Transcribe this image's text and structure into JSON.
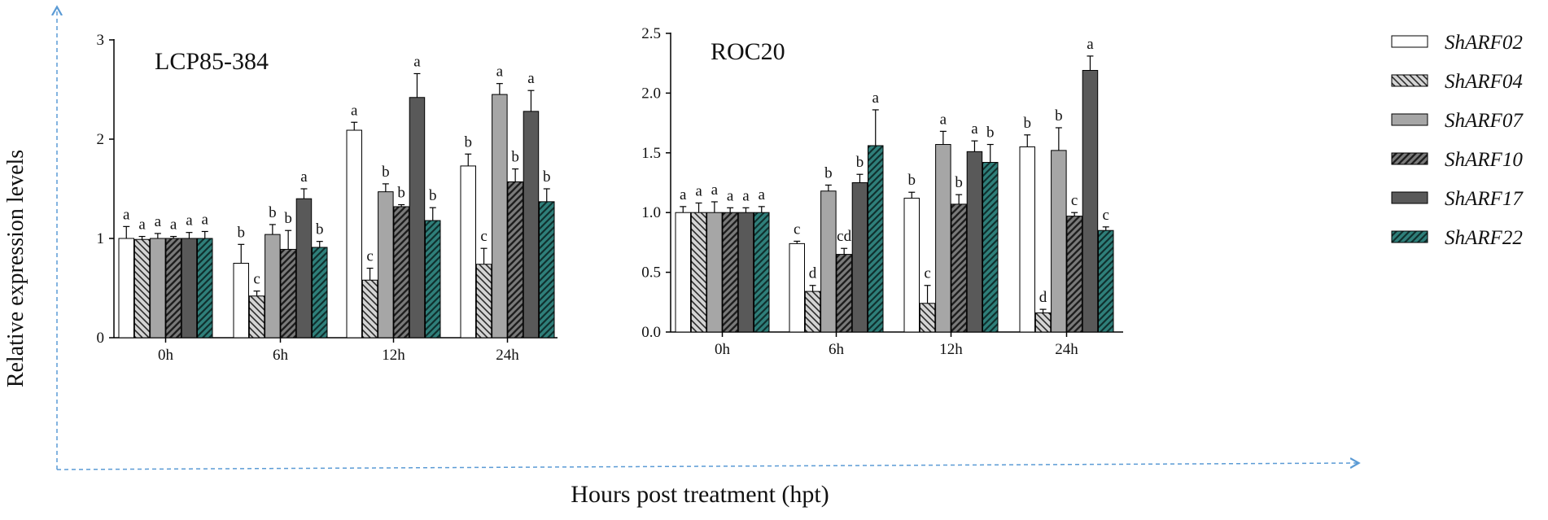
{
  "figure": {
    "shared_ylabel": "Relative expression levels",
    "shared_xlabel": "Hours post treatment (hpt)",
    "axis_arrow_color": "#5b9bd5"
  },
  "legend": [
    {
      "name": "ShARF02",
      "fill": "#ffffff",
      "hatch": "none"
    },
    {
      "name": "ShARF04",
      "fill": "#d4d4d4",
      "hatch": "back"
    },
    {
      "name": "ShARF07",
      "fill": "#a6a6a6",
      "hatch": "none"
    },
    {
      "name": "ShARF10",
      "fill": "#7a7a7a",
      "hatch": "fwd"
    },
    {
      "name": "ShARF17",
      "fill": "#595959",
      "hatch": "none"
    },
    {
      "name": "ShARF22",
      "fill": "#2f7f7a",
      "hatch": "fwd"
    }
  ],
  "chart_data": [
    {
      "type": "bar",
      "title": "LCP85-384",
      "xlabel": "",
      "ylabel": "",
      "categories": [
        "0h",
        "6h",
        "12h",
        "24h"
      ],
      "ylim": [
        0,
        3
      ],
      "yticks": [
        "0",
        "1",
        "2",
        "3"
      ],
      "ytick_values": [
        0,
        1,
        2,
        3
      ],
      "series": [
        {
          "name": "ShARF02",
          "values": [
            1.0,
            0.75,
            2.09,
            1.73
          ],
          "errors": [
            0.12,
            0.19,
            0.08,
            0.12
          ],
          "letters": [
            "a",
            "b",
            "a",
            "b"
          ]
        },
        {
          "name": "ShARF04",
          "values": [
            0.99,
            0.42,
            0.58,
            0.74
          ],
          "errors": [
            0.03,
            0.05,
            0.12,
            0.16
          ],
          "letters": [
            "a",
            "c",
            "c",
            "c"
          ]
        },
        {
          "name": "ShARF07",
          "values": [
            1.0,
            1.04,
            1.47,
            2.45
          ],
          "errors": [
            0.05,
            0.1,
            0.08,
            0.11
          ],
          "letters": [
            "a",
            "b",
            "b",
            "a"
          ]
        },
        {
          "name": "ShARF10",
          "values": [
            1.0,
            0.89,
            1.32,
            1.57
          ],
          "errors": [
            0.02,
            0.19,
            0.02,
            0.13
          ],
          "letters": [
            "a",
            "b",
            "b",
            "b"
          ]
        },
        {
          "name": "ShARF17",
          "values": [
            1.0,
            1.4,
            2.42,
            2.28
          ],
          "errors": [
            0.06,
            0.1,
            0.24,
            0.21
          ],
          "letters": [
            "a",
            "a",
            "a",
            "a"
          ]
        },
        {
          "name": "ShARF22",
          "values": [
            1.0,
            0.91,
            1.18,
            1.37
          ],
          "errors": [
            0.07,
            0.06,
            0.13,
            0.13
          ],
          "letters": [
            "a",
            "b",
            "b",
            "b"
          ]
        }
      ]
    },
    {
      "type": "bar",
      "title": "ROC20",
      "xlabel": "",
      "ylabel": "",
      "categories": [
        "0h",
        "6h",
        "12h",
        "24h"
      ],
      "ylim": [
        0,
        2.5
      ],
      "yticks": [
        "0.0",
        "0.5",
        "1.0",
        "1.5",
        "2.0",
        "2.5"
      ],
      "ytick_values": [
        0,
        0.5,
        1,
        1.5,
        2,
        2.5
      ],
      "series": [
        {
          "name": "ShARF02",
          "values": [
            1.0,
            0.74,
            1.12,
            1.55
          ],
          "errors": [
            0.05,
            0.02,
            0.05,
            0.1
          ],
          "letters": [
            "a",
            "c",
            "b",
            "b"
          ]
        },
        {
          "name": "ShARF04",
          "values": [
            1.0,
            0.34,
            0.24,
            0.16
          ],
          "errors": [
            0.08,
            0.05,
            0.15,
            0.03
          ],
          "letters": [
            "a",
            "d",
            "c",
            "d"
          ]
        },
        {
          "name": "ShARF07",
          "values": [
            1.0,
            1.18,
            1.57,
            1.52
          ],
          "errors": [
            0.09,
            0.05,
            0.11,
            0.19
          ],
          "letters": [
            "a",
            "b",
            "a",
            "b"
          ]
        },
        {
          "name": "ShARF10",
          "values": [
            1.0,
            0.65,
            1.07,
            0.97
          ],
          "errors": [
            0.04,
            0.05,
            0.08,
            0.03
          ],
          "letters": [
            "a",
            "cd",
            "b",
            "c"
          ]
        },
        {
          "name": "ShARF17",
          "values": [
            1.0,
            1.25,
            1.51,
            2.19
          ],
          "errors": [
            0.04,
            0.07,
            0.09,
            0.12
          ],
          "letters": [
            "a",
            "b",
            "a",
            "a"
          ]
        },
        {
          "name": "ShARF22",
          "values": [
            1.0,
            1.56,
            1.42,
            0.85
          ],
          "errors": [
            0.05,
            0.3,
            0.15,
            0.03
          ],
          "letters": [
            "a",
            "a",
            "b",
            "c"
          ]
        }
      ]
    }
  ]
}
